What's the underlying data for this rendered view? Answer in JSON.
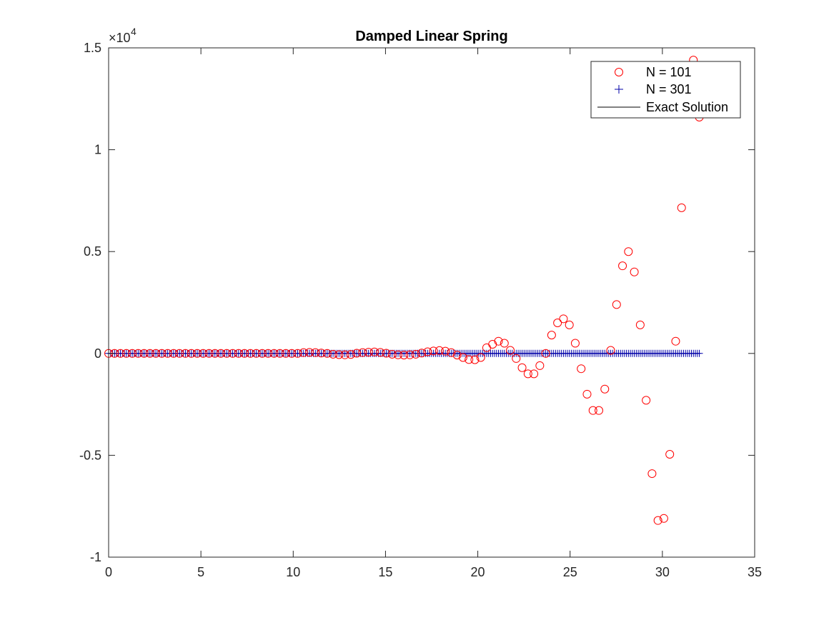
{
  "chart_data": {
    "type": "scatter",
    "title": "Damped Linear Spring",
    "xlabel": "",
    "ylabel": "",
    "xlim": [
      0,
      35
    ],
    "ylim": [
      -1,
      1.5
    ],
    "y_exponent_label": "×10",
    "y_exponent_power": "4",
    "xticks": [
      "0",
      "5",
      "10",
      "15",
      "20",
      "25",
      "30",
      "35"
    ],
    "yticks": [
      "-1",
      "-0.5",
      "0",
      "0.5",
      "1",
      "1.5"
    ],
    "legend_position": "top-right",
    "grid": false,
    "series": [
      {
        "name": "N = 101",
        "marker": "circle",
        "color": "#ff0000",
        "x_start": 0,
        "x_end": 32,
        "x_count": 101,
        "nonzero_points": [
          [
            10.56,
            0.004
          ],
          [
            10.88,
            0.005
          ],
          [
            11.2,
            0.004
          ],
          [
            11.52,
            0.002
          ],
          [
            12.16,
            -0.004
          ],
          [
            12.48,
            -0.006
          ],
          [
            12.8,
            -0.007
          ],
          [
            13.12,
            -0.005
          ],
          [
            13.44,
            0.001
          ],
          [
            13.76,
            0.004
          ],
          [
            14.08,
            0.006
          ],
          [
            14.4,
            0.007
          ],
          [
            14.72,
            0.005
          ],
          [
            15.04,
            0.001
          ],
          [
            15.36,
            -0.004
          ],
          [
            15.68,
            -0.007
          ],
          [
            16.0,
            -0.008
          ],
          [
            16.32,
            -0.007
          ],
          [
            16.64,
            -0.004
          ],
          [
            16.96,
            0.002
          ],
          [
            17.28,
            0.008
          ],
          [
            17.6,
            0.012
          ],
          [
            17.92,
            0.014
          ],
          [
            18.24,
            0.011
          ],
          [
            18.56,
            0.004
          ],
          [
            18.88,
            -0.008
          ],
          [
            19.2,
            -0.02
          ],
          [
            19.52,
            -0.03
          ],
          [
            19.84,
            -0.031
          ],
          [
            20.16,
            -0.02
          ],
          [
            20.48,
            0.028
          ],
          [
            20.8,
            0.045
          ],
          [
            21.12,
            0.06
          ],
          [
            21.44,
            0.05
          ],
          [
            21.76,
            0.015
          ],
          [
            22.08,
            -0.025
          ],
          [
            22.4,
            -0.07
          ],
          [
            22.72,
            -0.1
          ],
          [
            23.04,
            -0.1
          ],
          [
            23.36,
            -0.06
          ],
          [
            23.68,
            0.0
          ],
          [
            24.0,
            0.09
          ],
          [
            24.32,
            0.15
          ],
          [
            24.64,
            0.17
          ],
          [
            24.96,
            0.14
          ],
          [
            25.28,
            0.05
          ],
          [
            25.6,
            -0.075
          ],
          [
            25.92,
            -0.2
          ],
          [
            26.24,
            -0.28
          ],
          [
            26.56,
            -0.28
          ],
          [
            26.88,
            -0.175
          ],
          [
            27.2,
            0.015
          ],
          [
            27.52,
            0.24
          ],
          [
            27.84,
            0.43
          ],
          [
            28.16,
            0.5
          ],
          [
            28.48,
            0.4
          ],
          [
            28.8,
            0.14
          ],
          [
            29.12,
            -0.23
          ],
          [
            29.44,
            -0.59
          ],
          [
            29.76,
            -0.82
          ],
          [
            30.08,
            -0.81
          ],
          [
            30.4,
            -0.495
          ],
          [
            30.72,
            0.06
          ],
          [
            31.04,
            0.715
          ],
          [
            31.36,
            1.2
          ],
          [
            31.68,
            1.44
          ],
          [
            32.0,
            1.16
          ]
        ]
      },
      {
        "name": "N = 301",
        "marker": "plus",
        "color": "#0000aa",
        "x_start": 0,
        "x_end": 32,
        "x_count": 301,
        "y_constant": 0
      },
      {
        "name": "Exact Solution",
        "marker": "line",
        "color": "#000000",
        "x_start": 0,
        "x_end": 32,
        "y_constant": 0
      }
    ]
  }
}
